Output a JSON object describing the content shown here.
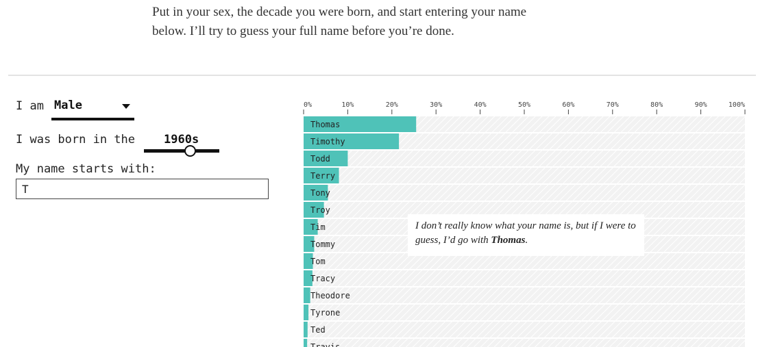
{
  "intro": {
    "line1": "Put in your sex, the decade you were born, and start entering your name",
    "line2": "below. I’ll try to guess your full name before you’re done."
  },
  "form": {
    "sex_label": "I am",
    "sex_value": "Male",
    "decade_label": "I was born in the",
    "decade_value": "1960s",
    "decade_slider_level": 0.6,
    "name_label": "My name starts with:",
    "name_value": "T"
  },
  "guess": {
    "text_before": "I don’t really know what your name is, but if I were to guess, I’d go with ",
    "name": "Thomas",
    "text_after": "."
  },
  "colors": {
    "bar": "#4fc2b8",
    "bar_background": "#f2f2f2",
    "stripe": "#ffffff",
    "axis": "#444444"
  },
  "chart_data": {
    "type": "bar",
    "orientation": "horizontal",
    "xlim": [
      0,
      100
    ],
    "x_ticks": [
      "0%",
      "10%",
      "20%",
      "30%",
      "40%",
      "50%",
      "60%",
      "70%",
      "80%",
      "90%",
      "100%"
    ],
    "categories": [
      "Thomas",
      "Timothy",
      "Todd",
      "Terry",
      "Tony",
      "Troy",
      "Tim",
      "Tommy",
      "Tom",
      "Tracy",
      "Theodore",
      "Tyrone",
      "Ted",
      "Travis"
    ],
    "values": [
      25.5,
      21.6,
      10,
      8,
      5.5,
      4.6,
      3.2,
      2.4,
      2.1,
      2,
      1.5,
      1.1,
      0.9,
      0.8
    ]
  }
}
